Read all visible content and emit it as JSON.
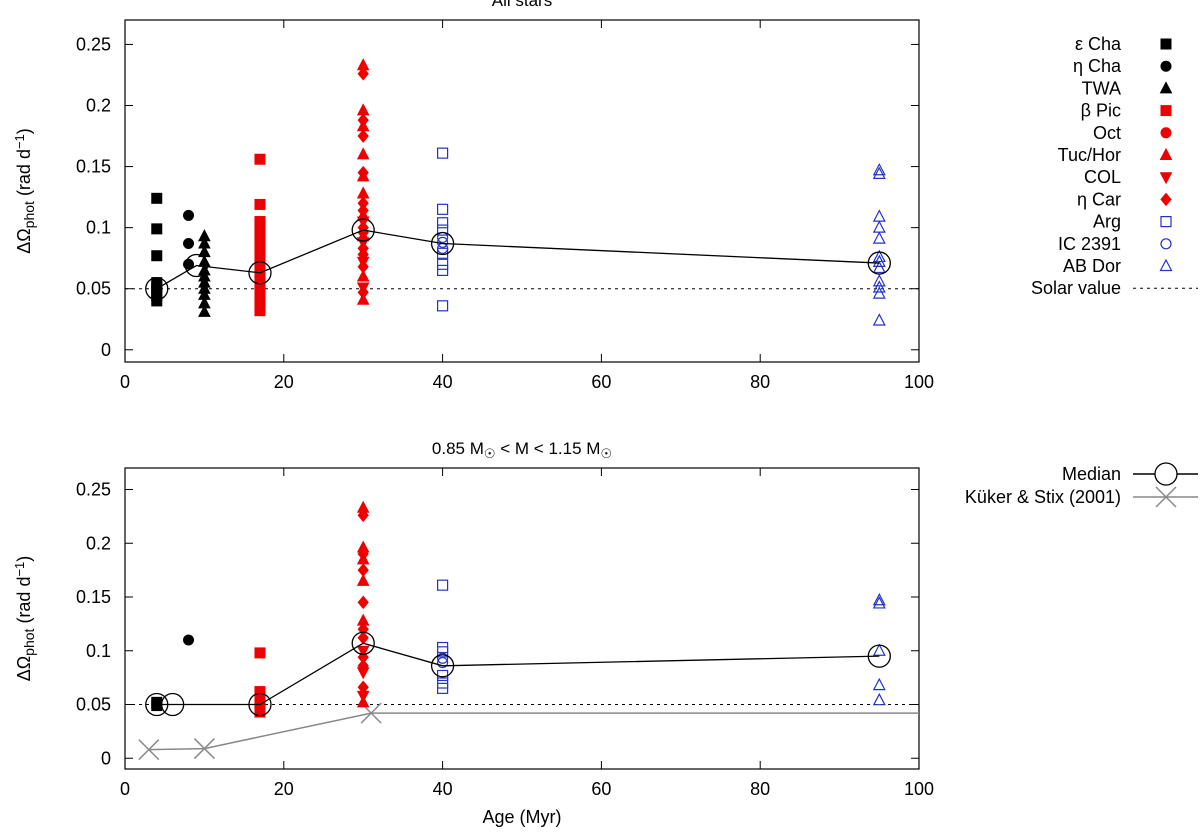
{
  "colors": {
    "black": "#000000",
    "red": "#ee0000",
    "blue": "#2233cc",
    "grey": "#888888"
  },
  "legend_top": [
    {
      "label": "ε Cha",
      "marker": "square",
      "filled": true,
      "color": "#000000"
    },
    {
      "label": "η Cha",
      "marker": "circle",
      "filled": true,
      "color": "#000000"
    },
    {
      "label": "TWA",
      "marker": "triangle-up",
      "filled": true,
      "color": "#000000"
    },
    {
      "label": "β Pic",
      "marker": "square",
      "filled": true,
      "color": "#ee0000"
    },
    {
      "label": "Oct",
      "marker": "circle",
      "filled": true,
      "color": "#ee0000"
    },
    {
      "label": "Tuc/Hor",
      "marker": "triangle-up",
      "filled": true,
      "color": "#ee0000"
    },
    {
      "label": "COL",
      "marker": "triangle-down",
      "filled": true,
      "color": "#ee0000"
    },
    {
      "label": "η Car",
      "marker": "diamond",
      "filled": true,
      "color": "#ee0000"
    },
    {
      "label": "Arg",
      "marker": "square",
      "filled": false,
      "color": "#2233cc"
    },
    {
      "label": "IC 2391",
      "marker": "circle",
      "filled": false,
      "color": "#2233cc"
    },
    {
      "label": "AB Dor",
      "marker": "triangle-up",
      "filled": false,
      "color": "#2233cc"
    },
    {
      "label": "Solar value",
      "marker": "dashed-line",
      "filled": false,
      "color": "#000000"
    }
  ],
  "legend_bottom": [
    {
      "label": "Median",
      "marker": "open-circle-line",
      "color": "#000000"
    },
    {
      "label": "Küker & Stix (2001)",
      "marker": "cross-line",
      "color": "#888888"
    }
  ],
  "chart_data": [
    {
      "type": "scatter",
      "title": "All stars",
      "xlabel": "",
      "ylabel": "ΔΩphot (rad d−1)",
      "ylabel_parts": {
        "main": "ΔΩ",
        "sub": "phot",
        "unit": " (rad d",
        "sup": "−1",
        "close": ")"
      },
      "xlim": [
        0,
        100
      ],
      "ylim": [
        -0.01,
        0.27
      ],
      "xticks": [
        0,
        20,
        40,
        60,
        80,
        100
      ],
      "xtick_labels": [
        "0",
        "20",
        "40",
        "60",
        "80",
        "100"
      ],
      "yticks": [
        0,
        0.05,
        0.1,
        0.15,
        0.2,
        0.25
      ],
      "ytick_labels": [
        "0",
        "0.05",
        "0.1",
        "0.15",
        "0.2",
        "0.25"
      ],
      "solar_value": 0.05,
      "series": [
        {
          "name": "ε Cha",
          "marker": "square",
          "filled": true,
          "color": "#000000",
          "x": [
            4,
            4,
            4,
            4,
            4,
            4,
            4,
            4,
            4
          ],
          "y": [
            0.124,
            0.099,
            0.077,
            0.055,
            0.052,
            0.05,
            0.047,
            0.044,
            0.04
          ]
        },
        {
          "name": "η Cha",
          "marker": "circle",
          "filled": true,
          "color": "#000000",
          "x": [
            8,
            8,
            8
          ],
          "y": [
            0.11,
            0.087,
            0.07
          ]
        },
        {
          "name": "TWA",
          "marker": "triangle-up",
          "filled": true,
          "color": "#000000",
          "x": [
            10,
            10,
            10,
            10,
            10,
            10,
            10,
            10,
            10,
            10,
            10
          ],
          "y": [
            0.093,
            0.087,
            0.08,
            0.072,
            0.065,
            0.06,
            0.055,
            0.05,
            0.045,
            0.038,
            0.031
          ]
        },
        {
          "name": "β Pic",
          "marker": "square",
          "filled": true,
          "color": "#ee0000",
          "x": [
            17,
            17,
            17,
            17,
            17,
            17,
            17,
            17,
            17,
            17,
            17,
            17,
            17,
            17,
            17,
            17,
            17,
            17,
            17,
            17
          ],
          "y": [
            0.156,
            0.119,
            0.105,
            0.102,
            0.098,
            0.095,
            0.091,
            0.087,
            0.082,
            0.078,
            0.073,
            0.068,
            0.064,
            0.06,
            0.056,
            0.052,
            0.048,
            0.043,
            0.037,
            0.032
          ]
        },
        {
          "name": "Tuc/Hor",
          "marker": "triangle-up",
          "filled": true,
          "color": "#ee0000",
          "x": [
            30,
            30,
            30,
            30,
            30,
            30,
            30,
            30,
            30,
            30
          ],
          "y": [
            0.233,
            0.196,
            0.183,
            0.16,
            0.142,
            0.128,
            0.11,
            0.093,
            0.06,
            0.041
          ]
        },
        {
          "name": "COL",
          "marker": "triangle-down",
          "filled": true,
          "color": "#ee0000",
          "x": [
            30,
            30,
            30,
            30
          ],
          "y": [
            0.105,
            0.088,
            0.072,
            0.051
          ]
        },
        {
          "name": "η Car",
          "marker": "diamond",
          "filled": true,
          "color": "#ee0000",
          "x": [
            30,
            30,
            30,
            30,
            30,
            30,
            30,
            30,
            30,
            30,
            30,
            30
          ],
          "y": [
            0.226,
            0.188,
            0.175,
            0.145,
            0.12,
            0.114,
            0.1,
            0.096,
            0.083,
            0.078,
            0.068,
            0.047
          ]
        },
        {
          "name": "Arg",
          "marker": "square",
          "filled": false,
          "color": "#2233cc",
          "x": [
            40,
            40,
            40,
            40,
            40,
            40,
            40,
            40
          ],
          "y": [
            0.161,
            0.115,
            0.104,
            0.098,
            0.079,
            0.07,
            0.065,
            0.036
          ]
        },
        {
          "name": "IC 2391",
          "marker": "circle",
          "filled": false,
          "color": "#2233cc",
          "x": [
            40,
            40,
            40
          ],
          "y": [
            0.092,
            0.088,
            0.083
          ]
        },
        {
          "name": "AB Dor",
          "marker": "triangle-up",
          "filled": false,
          "color": "#2233cc",
          "x": [
            95,
            95,
            95,
            95,
            95,
            95,
            95,
            95,
            95,
            95,
            95,
            95
          ],
          "y": [
            0.147,
            0.144,
            0.109,
            0.1,
            0.091,
            0.076,
            0.072,
            0.067,
            0.056,
            0.051,
            0.046,
            0.024
          ]
        }
      ],
      "median": {
        "x": [
          4,
          9,
          17,
          30,
          40,
          95
        ],
        "y": [
          0.05,
          0.069,
          0.063,
          0.098,
          0.087,
          0.071
        ]
      }
    },
    {
      "type": "scatter",
      "title": "0.85 M☉ < M < 1.15  M☉",
      "title_parts": [
        "0.85 M",
        "☉",
        " < M < 1.15  M",
        "☉"
      ],
      "xlabel": "Age (Myr)",
      "ylabel": "ΔΩphot (rad d−1)",
      "ylabel_parts": {
        "main": "ΔΩ",
        "sub": "phot",
        "unit": " (rad d",
        "sup": "−1",
        "close": ")"
      },
      "xlim": [
        0,
        100
      ],
      "ylim": [
        -0.01,
        0.27
      ],
      "xticks": [
        0,
        20,
        40,
        60,
        80,
        100
      ],
      "xtick_labels": [
        "0",
        "20",
        "40",
        "60",
        "80",
        "100"
      ],
      "yticks": [
        0,
        0.05,
        0.1,
        0.15,
        0.2,
        0.25
      ],
      "ytick_labels": [
        "0",
        "0.05",
        "0.1",
        "0.15",
        "0.2",
        "0.25"
      ],
      "solar_value": 0.05,
      "series": [
        {
          "name": "ε Cha",
          "marker": "square",
          "filled": true,
          "color": "#000000",
          "x": [
            4,
            4
          ],
          "y": [
            0.052,
            0.049
          ]
        },
        {
          "name": "η Cha",
          "marker": "circle",
          "filled": true,
          "color": "#000000",
          "x": [
            8
          ],
          "y": [
            0.11
          ]
        },
        {
          "name": "β Pic",
          "marker": "square",
          "filled": true,
          "color": "#ee0000",
          "x": [
            17,
            17,
            17,
            17,
            17
          ],
          "y": [
            0.098,
            0.062,
            0.052,
            0.047,
            0.043
          ]
        },
        {
          "name": "Tuc/Hor",
          "marker": "triangle-up",
          "filled": true,
          "color": "#ee0000",
          "x": [
            30,
            30,
            30,
            30,
            30,
            30
          ],
          "y": [
            0.233,
            0.196,
            0.185,
            0.165,
            0.128,
            0.052
          ]
        },
        {
          "name": "COL",
          "marker": "triangle-down",
          "filled": true,
          "color": "#ee0000",
          "x": [
            30,
            30,
            30
          ],
          "y": [
            0.1,
            0.08,
            0.058
          ]
        },
        {
          "name": "η Car",
          "marker": "diamond",
          "filled": true,
          "color": "#ee0000",
          "x": [
            30,
            30,
            30,
            30,
            30,
            30,
            30,
            30,
            30
          ],
          "y": [
            0.226,
            0.19,
            0.175,
            0.145,
            0.12,
            0.112,
            0.094,
            0.086,
            0.066
          ]
        },
        {
          "name": "Arg",
          "marker": "square",
          "filled": false,
          "color": "#2233cc",
          "x": [
            40,
            40,
            40,
            40,
            40,
            40
          ],
          "y": [
            0.161,
            0.103,
            0.099,
            0.077,
            0.07,
            0.065
          ]
        },
        {
          "name": "IC 2391",
          "marker": "circle",
          "filled": false,
          "color": "#2233cc",
          "x": [
            40,
            40
          ],
          "y": [
            0.093,
            0.089
          ]
        },
        {
          "name": "AB Dor",
          "marker": "triangle-up",
          "filled": false,
          "color": "#2233cc",
          "x": [
            95,
            95,
            95,
            95,
            95
          ],
          "y": [
            0.147,
            0.144,
            0.1,
            0.068,
            0.054
          ]
        }
      ],
      "median": {
        "x": [
          4,
          6,
          17,
          30,
          40,
          95
        ],
        "y": [
          0.05,
          0.05,
          0.05,
          0.107,
          0.086,
          0.095
        ]
      },
      "model": {
        "name": "Küker & Stix (2001)",
        "x": [
          3,
          10,
          31,
          100
        ],
        "y": [
          0.008,
          0.009,
          0.042,
          0.042
        ],
        "marked": [
          true,
          true,
          true,
          false
        ]
      }
    }
  ]
}
